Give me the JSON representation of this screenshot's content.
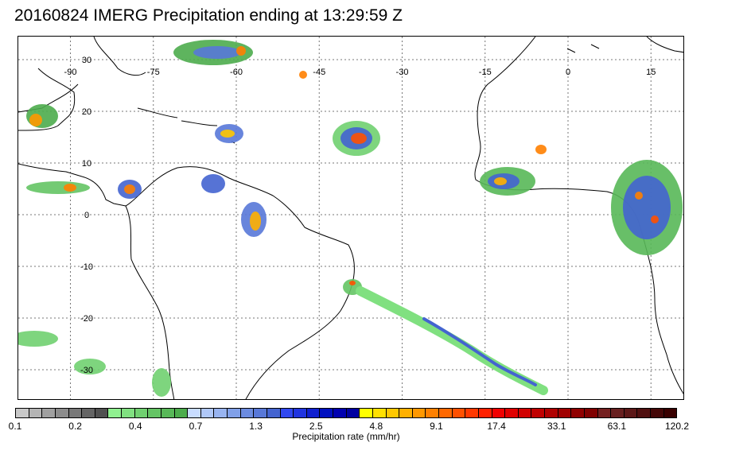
{
  "title": "20160824 IMERG Precipitation ending at 13:29:59 Z",
  "map": {
    "lon_labels": [
      "-90",
      "-75",
      "-60",
      "-45",
      "-30",
      "-15",
      "0",
      "15"
    ],
    "lat_labels": [
      "30",
      "20",
      "10",
      "0",
      "-10",
      "-20",
      "-30"
    ]
  },
  "colorbar": {
    "colors": [
      "#c8c8c8",
      "#b4b4b4",
      "#a0a0a0",
      "#8c8c8c",
      "#787878",
      "#646464",
      "#505050",
      "#90f090",
      "#80e080",
      "#70d070",
      "#64c464",
      "#58b858",
      "#4cac4c",
      "#c8dcff",
      "#b0c8f8",
      "#98b4f0",
      "#80a0e8",
      "#6c8ce0",
      "#5878d8",
      "#4464d0",
      "#3048f0",
      "#2034e0",
      "#1020d0",
      "#0010c0",
      "#0000b0",
      "#0000a0",
      "#ffff00",
      "#ffe000",
      "#ffc800",
      "#ffb000",
      "#ff9800",
      "#ff8000",
      "#ff6800",
      "#ff5000",
      "#ff3800",
      "#ff2000",
      "#f00000",
      "#e00000",
      "#d00000",
      "#c00000",
      "#b00000",
      "#a00000",
      "#900000",
      "#800000",
      "#742020",
      "#682020",
      "#5c1818",
      "#501010",
      "#440808",
      "#380000"
    ],
    "tick_labels": [
      "0.1",
      "0.2",
      "0.4",
      "0.7",
      "1.3",
      "2.5",
      "4.8",
      "9.1",
      "17.4",
      "33.1",
      "63.1",
      "120.2"
    ],
    "caption": "Precipitation rate (mm/hr)"
  }
}
